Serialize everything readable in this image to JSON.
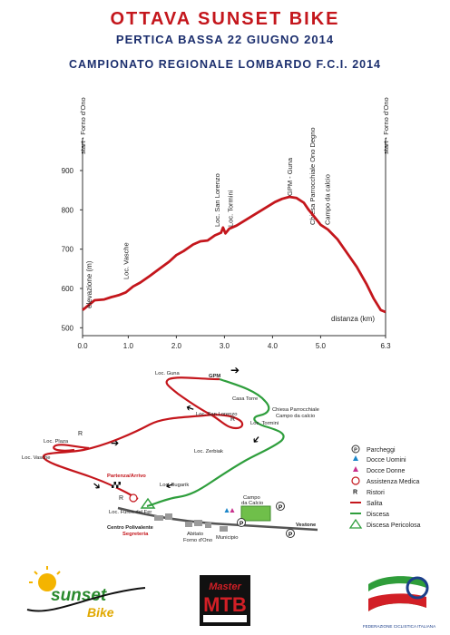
{
  "header": {
    "title": "OTTAVA SUNSET BIKE",
    "subtitle": "PERTICA BASSA 22 GIUGNO 2014",
    "championship": "CAMPIONATO REGIONALE LOMBARDO F.C.I. 2014"
  },
  "chart_data": {
    "type": "line",
    "title": "",
    "xlabel": "distanza (km)",
    "ylabel": "elevazione (m)",
    "xlim": [
      0,
      6.3
    ],
    "ylim": [
      480,
      960
    ],
    "x_ticks": [
      "0.0",
      "1.0",
      "2.0",
      "3.0",
      "4.0",
      "5.0",
      "6.3"
    ],
    "x_tick_values": [
      0,
      0.95,
      1.95,
      2.95,
      3.95,
      4.95,
      6.3
    ],
    "y_ticks": [
      500,
      600,
      700,
      800,
      900
    ],
    "grid": false,
    "color": "#c4161c",
    "series": [
      {
        "name": "",
        "x": [
          0,
          0.1,
          0.25,
          0.45,
          0.6,
          0.75,
          0.9,
          1.05,
          1.2,
          1.4,
          1.6,
          1.8,
          1.95,
          2.1,
          2.3,
          2.45,
          2.6,
          2.75,
          2.88,
          2.92,
          2.97,
          3.05,
          3.2,
          3.4,
          3.6,
          3.8,
          4.0,
          4.15,
          4.3,
          4.45,
          4.6,
          4.7,
          4.8,
          4.95,
          5.1,
          5.3,
          5.5,
          5.7,
          5.9,
          6.05,
          6.2,
          6.3
        ],
        "y": [
          545,
          555,
          570,
          572,
          578,
          583,
          590,
          605,
          615,
          632,
          650,
          668,
          685,
          695,
          712,
          720,
          722,
          735,
          742,
          755,
          740,
          752,
          760,
          775,
          790,
          805,
          820,
          828,
          833,
          830,
          818,
          800,
          785,
          762,
          750,
          725,
          690,
          655,
          612,
          575,
          545,
          540
        ]
      }
    ],
    "annotations": [
      {
        "text": "start - Forno d'Ono",
        "x": 0
      },
      {
        "text": "Loc. Vasche",
        "x": 0.9
      },
      {
        "text": "Loc. San Lorenzo",
        "x": 2.85
      },
      {
        "text": "Loc. Tormini",
        "x": 2.95
      },
      {
        "text": "GPM - Guna",
        "x": 4.3
      },
      {
        "text": "Chiesa Parrocchiale Ono Degno",
        "x": 4.85
      },
      {
        "text": "Campo da calcio",
        "x": 4.97
      },
      {
        "text": "start - Forno d'Ono",
        "x": 6.3
      }
    ]
  },
  "map": {
    "places": [
      "Loc. Guna",
      "GPM",
      "Casa Torre",
      "Chiesa Parrocchiale",
      "Campo da calcio",
      "Loc. San Lorenzo",
      "Loc. Tormini",
      "Loc. Plaza",
      "Loc. Vasche",
      "Loc. Zerbiak",
      "Partenza/Arrivo",
      "Loc. Bugarik",
      "Loc. Furen del Fer",
      "Centro Polivalente",
      "Segreteria",
      "Campo",
      "da Calcio",
      "Abitato",
      "Forno d'Ono",
      "Municipio",
      "Vestone"
    ],
    "ristori_letter": "R",
    "parking_letter": "P",
    "colors": {
      "salita": "#c4161c",
      "discesa": "#2e9e3c",
      "road": "#555555"
    }
  },
  "legend": {
    "items": [
      "Parcheggi",
      "Docce Uomini",
      "Docce Donne",
      "Assistenza Medica",
      "Ristori",
      "Salita",
      "Discesa",
      "Discesa Pericolosa"
    ]
  },
  "logos": {
    "sunset": [
      "sunset",
      "Bike"
    ],
    "mtb": [
      "Master",
      "MTB"
    ],
    "fci": [
      "FEDERAZIONE CICLISTICA ITALIANA"
    ]
  }
}
